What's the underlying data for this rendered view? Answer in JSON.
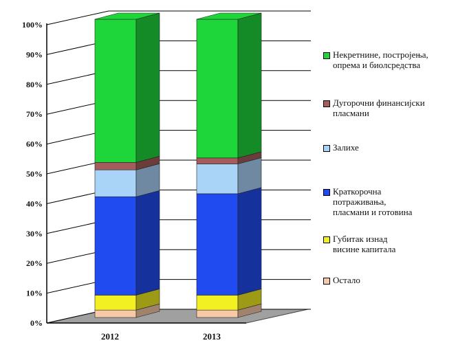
{
  "chart_data": {
    "type": "bar",
    "stacked": true,
    "three_d": true,
    "categories": [
      "2012",
      "2013"
    ],
    "yticks": [
      "0%",
      "10%",
      "20%",
      "30%",
      "40%",
      "50%",
      "60%",
      "70%",
      "80%",
      "90%",
      "100%"
    ],
    "ylim": [
      0,
      100
    ],
    "series": [
      {
        "name": "Остало",
        "values": [
          2.5,
          2.5
        ],
        "color": "#f7c9a8"
      },
      {
        "name": "Губитак изнад\nвисине капитала",
        "values": [
          5.0,
          5.0
        ],
        "color": "#f2ef22"
      },
      {
        "name": "Краткорочна\nпотраживања,\nпласмани и готовина",
        "values": [
          33.0,
          34.0
        ],
        "color": "#1f4bf0"
      },
      {
        "name": "Залихе",
        "values": [
          9.0,
          10.0
        ],
        "color": "#a9d3f7"
      },
      {
        "name": "Дугорочни финансијски\nпласмани",
        "values": [
          2.5,
          2.0
        ],
        "color": "#a45c5c"
      },
      {
        "name": "Некретнине, постројења,\nопрема и биолсредства",
        "values": [
          48.0,
          46.5
        ],
        "color": "#1fd63a"
      }
    ]
  }
}
